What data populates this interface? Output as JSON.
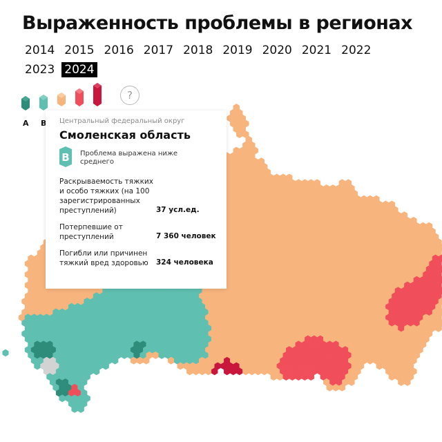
{
  "title": "Выраженность проблемы в регионах",
  "years": [
    "2014",
    "2015",
    "2016",
    "2017",
    "2018",
    "2019",
    "2020",
    "2021",
    "2022",
    "2023",
    "2024"
  ],
  "selected_year": "2024",
  "legend": {
    "labels": [
      "А",
      "В"
    ],
    "help": "?",
    "colors": [
      "#2e8c7a",
      "#5fbfb0",
      "#f7b47d",
      "#f04e5a",
      "#c8163c"
    ]
  },
  "tooltip": {
    "district": "Центральный федеральный округ",
    "region": "Смоленская область",
    "grade": "В",
    "grade_text": "Проблема выражена ниже среднего",
    "rows": [
      {
        "label": "Раскрываемость тяжких и особо тяжких (на 100 зарегистрированных преступлений)",
        "value": "37 усл.ед."
      },
      {
        "label": "Потерпевшие от преступлений",
        "value": "7 360 человек"
      },
      {
        "label": "Погибли или причинен тяжкий вред здоровью",
        "value": "324 человека"
      }
    ]
  },
  "map_colors": {
    "orange": "#f7b47d",
    "teal": "#5fbfb0",
    "dark_teal": "#2e8c7a",
    "red": "#f04e5a",
    "dark_red": "#c8163c",
    "grey": "#d3d3d3",
    "border": "#ffffff"
  }
}
